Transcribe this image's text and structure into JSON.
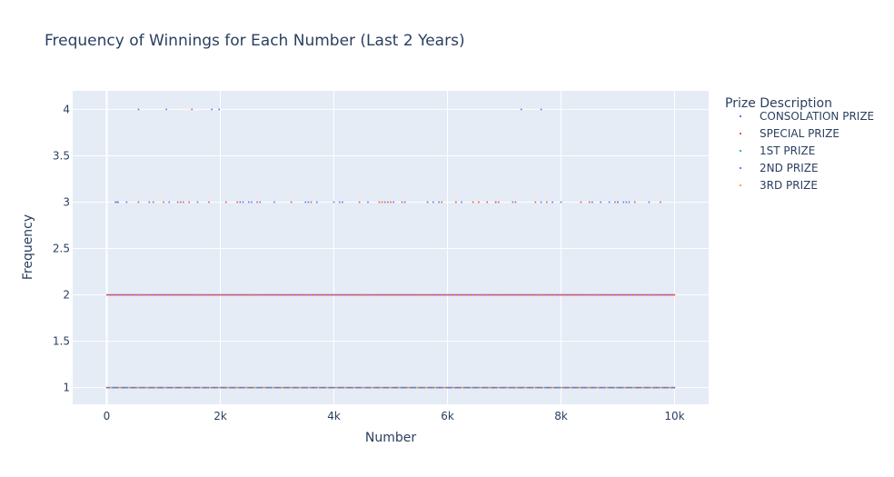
{
  "chart_data": {
    "type": "scatter",
    "title": "Frequency of Winnings for Each Number (Last 2 Years)",
    "xlabel": "Number",
    "ylabel": "Frequency",
    "xlim": [
      -600,
      10600
    ],
    "ylim": [
      0.82,
      4.2
    ],
    "x_ticks": [
      0,
      2000,
      4000,
      6000,
      8000,
      10000
    ],
    "x_tick_labels": [
      "0",
      "2k",
      "4k",
      "6k",
      "8k",
      "10k"
    ],
    "y_ticks": [
      1,
      1.5,
      2,
      2.5,
      3,
      3.5,
      4
    ],
    "y_tick_labels": [
      "1",
      "1.5",
      "2",
      "2.5",
      "3",
      "3.5",
      "4"
    ],
    "grid": true,
    "legend_title": "Prize Description",
    "legend_position": "right",
    "series": [
      {
        "name": "CONSOLATION PRIZE",
        "color": "#636efa",
        "points": [
          [
            150,
            3
          ],
          [
            200,
            3
          ],
          [
            350,
            3
          ],
          [
            560,
            4
          ],
          [
            750,
            3
          ],
          [
            1050,
            4
          ],
          [
            1100,
            3
          ],
          [
            1300,
            3
          ],
          [
            1600,
            3
          ],
          [
            1850,
            4
          ],
          [
            1980,
            4
          ],
          [
            2350,
            3
          ],
          [
            2400,
            3
          ],
          [
            2500,
            3
          ],
          [
            2550,
            3
          ],
          [
            2700,
            3
          ],
          [
            2950,
            3
          ],
          [
            3500,
            3
          ],
          [
            3550,
            3
          ],
          [
            3700,
            3
          ],
          [
            4000,
            3
          ],
          [
            4100,
            3
          ],
          [
            4150,
            3
          ],
          [
            4600,
            3
          ],
          [
            4900,
            3
          ],
          [
            5050,
            3
          ],
          [
            5250,
            3
          ],
          [
            5650,
            3
          ],
          [
            5750,
            3
          ],
          [
            5850,
            3
          ],
          [
            6250,
            3
          ],
          [
            6850,
            3
          ],
          [
            7200,
            3
          ],
          [
            7300,
            4
          ],
          [
            7650,
            4
          ],
          [
            7650,
            3
          ],
          [
            7850,
            3
          ],
          [
            8000,
            3
          ],
          [
            8550,
            3
          ],
          [
            8700,
            3
          ],
          [
            8850,
            3
          ],
          [
            8950,
            3
          ],
          [
            9000,
            3
          ],
          [
            9100,
            3
          ],
          [
            9150,
            3
          ],
          [
            9200,
            3
          ],
          [
            9550,
            3
          ]
        ]
      },
      {
        "name": "SPECIAL PRIZE",
        "color": "#ef553b",
        "points": [
          [
            180,
            3
          ],
          [
            560,
            3
          ],
          [
            820,
            3
          ],
          [
            1000,
            3
          ],
          [
            1250,
            3
          ],
          [
            1350,
            3
          ],
          [
            1450,
            3
          ],
          [
            1500,
            4
          ],
          [
            1800,
            3
          ],
          [
            2100,
            3
          ],
          [
            2300,
            3
          ],
          [
            2650,
            3
          ],
          [
            3250,
            3
          ],
          [
            3600,
            3
          ],
          [
            4450,
            3
          ],
          [
            4800,
            3
          ],
          [
            4850,
            3
          ],
          [
            4950,
            3
          ],
          [
            5000,
            3
          ],
          [
            5200,
            3
          ],
          [
            5900,
            3
          ],
          [
            6150,
            3
          ],
          [
            6450,
            3
          ],
          [
            6550,
            3
          ],
          [
            6700,
            3
          ],
          [
            6850,
            3
          ],
          [
            6900,
            3
          ],
          [
            7150,
            3
          ],
          [
            7550,
            3
          ],
          [
            7750,
            3
          ],
          [
            8350,
            3
          ],
          [
            8500,
            3
          ],
          [
            9000,
            3
          ],
          [
            9300,
            3
          ],
          [
            9750,
            3
          ]
        ]
      },
      {
        "name": "1ST PRIZE",
        "color": "#00cc96",
        "points": []
      },
      {
        "name": "2ND PRIZE",
        "color": "#ab63fa",
        "points": []
      },
      {
        "name": "3RD PRIZE",
        "color": "#ffa15a",
        "points": []
      }
    ],
    "dense_levels": [
      {
        "y": 2,
        "x_range": [
          0,
          10000
        ],
        "colors": [
          "#ef553b",
          "#636efa",
          "#ab63fa",
          "#ef553b",
          "#ef553b",
          "#636efa"
        ]
      },
      {
        "y": 1,
        "x_range": [
          0,
          10000
        ],
        "colors": [
          "#636efa",
          "#ef553b",
          "#00cc96",
          "#ab63fa",
          "#ffa15a",
          "#636efa",
          "#00cc96",
          "#ef553b"
        ]
      }
    ]
  }
}
